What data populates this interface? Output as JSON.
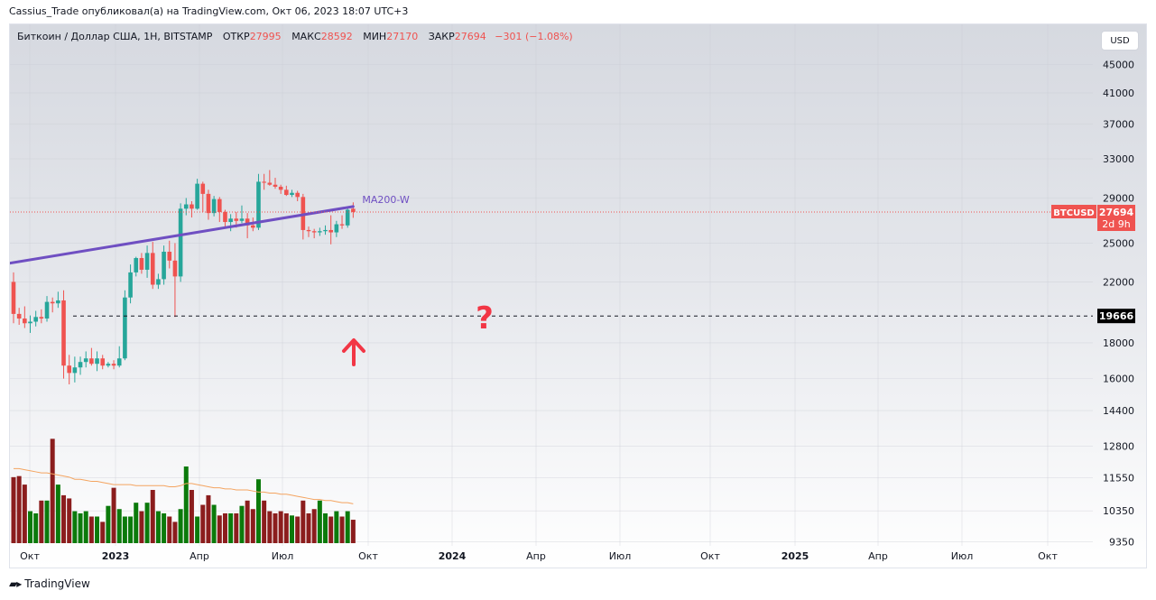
{
  "attribution": "Cassius_Trade опубликовал(а) на TradingView.com, Окт 06, 2023 18:07 UTC+3",
  "header": {
    "symbol": "Биткоин / Доллар США, 1Н, BITSTAMP",
    "open_label": "ОТКР",
    "open_value": "27995",
    "high_label": "МАКС",
    "high_value": "28592",
    "low_label": "МИН",
    "low_value": "27170",
    "close_label": "ЗАКР",
    "close_value": "27694",
    "change": "−301 (−1.08%)"
  },
  "currency_button": "USD",
  "footer": {
    "brand": "TradingView",
    "logo_icon": "tradingview-logo-icon"
  },
  "colors": {
    "up": "#26a69a",
    "down": "#ef5350",
    "vol_up": "#0b7a0b",
    "vol_down": "#8b1d1d",
    "ma200": "#6f4fc2",
    "vol_ma": "#f4a460",
    "annotation": "#f23645"
  },
  "chart_data": {
    "type": "candlestick",
    "interval": "1W",
    "y_axis_ticks": [
      "45000",
      "41000",
      "37000",
      "33000",
      "29000",
      "25000",
      "22000",
      "18000",
      "16000",
      "14400",
      "12800",
      "11550",
      "10350",
      "9350"
    ],
    "x_axis_labels": [
      {
        "label": "Окт",
        "bold": false
      },
      {
        "label": "2023",
        "bold": true
      },
      {
        "label": "Апр",
        "bold": false
      },
      {
        "label": "Июл",
        "bold": false
      },
      {
        "label": "Окт",
        "bold": false
      },
      {
        "label": "2024",
        "bold": true
      },
      {
        "label": "Апр",
        "bold": false
      },
      {
        "label": "Июл",
        "bold": false
      },
      {
        "label": "Окт",
        "bold": false
      },
      {
        "label": "2025",
        "bold": true
      },
      {
        "label": "Апр",
        "bold": false
      },
      {
        "label": "Июл",
        "bold": false
      },
      {
        "label": "Окт",
        "bold": false
      }
    ],
    "candles": [
      [
        22000,
        22700,
        19200,
        19800
      ],
      [
        19800,
        20200,
        19100,
        19500
      ],
      [
        19500,
        20300,
        18900,
        19200
      ],
      [
        19200,
        19700,
        18600,
        19300
      ],
      [
        19300,
        20000,
        19000,
        19600
      ],
      [
        19600,
        20100,
        19200,
        19500
      ],
      [
        19500,
        21000,
        19300,
        20600
      ],
      [
        20600,
        20900,
        19900,
        20500
      ],
      [
        20500,
        21300,
        20200,
        20700
      ],
      [
        20700,
        21400,
        16000,
        16700
      ],
      [
        16700,
        17300,
        15700,
        16300
      ],
      [
        16300,
        17200,
        15800,
        16600
      ],
      [
        16600,
        17200,
        16200,
        16900
      ],
      [
        16900,
        17500,
        16600,
        17100
      ],
      [
        17100,
        17700,
        16700,
        16800
      ],
      [
        16800,
        17500,
        16400,
        17100
      ],
      [
        17100,
        17300,
        16500,
        16700
      ],
      [
        16700,
        16900,
        16600,
        16800
      ],
      [
        16800,
        17000,
        16500,
        16700
      ],
      [
        16700,
        17800,
        16600,
        17100
      ],
      [
        17100,
        21400,
        17000,
        20900
      ],
      [
        20900,
        23300,
        20500,
        22700
      ],
      [
        22700,
        23900,
        22400,
        23800
      ],
      [
        23800,
        24200,
        22600,
        22900
      ],
      [
        22900,
        24800,
        22300,
        24200
      ],
      [
        24200,
        25100,
        21500,
        21800
      ],
      [
        21800,
        22600,
        21500,
        22200
      ],
      [
        22200,
        24800,
        21800,
        24300
      ],
      [
        24300,
        25200,
        23000,
        23600
      ],
      [
        23600,
        25000,
        19600,
        22400
      ],
      [
        22400,
        28500,
        22000,
        28000
      ],
      [
        28000,
        29000,
        27400,
        28400
      ],
      [
        28400,
        28700,
        27200,
        28000
      ],
      [
        28000,
        30900,
        27900,
        30400
      ],
      [
        30400,
        30600,
        27700,
        29400
      ],
      [
        29400,
        29800,
        27000,
        27600
      ],
      [
        27600,
        29200,
        27300,
        28900
      ],
      [
        28900,
        29100,
        26800,
        27700
      ],
      [
        27700,
        27900,
        26400,
        26800
      ],
      [
        26800,
        27500,
        26000,
        27100
      ],
      [
        27100,
        27700,
        26300,
        26900
      ],
      [
        26900,
        28300,
        26700,
        27100
      ],
      [
        27100,
        27600,
        25400,
        26500
      ],
      [
        26500,
        27200,
        26000,
        26300
      ],
      [
        26300,
        31400,
        26100,
        30600
      ],
      [
        30600,
        31400,
        29800,
        30500
      ],
      [
        30500,
        31800,
        30200,
        30300
      ],
      [
        30300,
        31000,
        29900,
        30100
      ],
      [
        30100,
        30300,
        29400,
        29800
      ],
      [
        29800,
        30200,
        29200,
        29300
      ],
      [
        29300,
        29800,
        29100,
        29500
      ],
      [
        29500,
        29700,
        28700,
        29100
      ],
      [
        29100,
        29400,
        25300,
        26100
      ],
      [
        26100,
        26400,
        25500,
        26000
      ],
      [
        26000,
        26200,
        25400,
        25900
      ],
      [
        25900,
        26300,
        25600,
        26000
      ],
      [
        26000,
        26500,
        25700,
        26100
      ],
      [
        26100,
        27400,
        24900,
        25900
      ],
      [
        25900,
        26900,
        25500,
        26600
      ],
      [
        26600,
        27400,
        26200,
        26500
      ],
      [
        26500,
        28100,
        26300,
        27900
      ],
      [
        27995,
        28592,
        27170,
        27694
      ]
    ],
    "volume_levels": [
      62,
      63,
      55,
      30,
      28,
      40,
      40,
      98,
      55,
      45,
      42,
      30,
      28,
      30,
      25,
      25,
      20,
      35,
      52,
      32,
      25,
      25,
      38,
      30,
      38,
      50,
      30,
      28,
      25,
      20,
      32,
      72,
      50,
      25,
      36,
      45,
      36,
      26,
      28,
      28,
      28,
      35,
      40,
      32,
      60,
      40,
      30,
      28,
      30,
      28,
      26,
      25,
      40,
      28,
      32,
      40,
      28,
      25,
      30,
      25,
      30,
      22
    ],
    "volume_ma": [
      70,
      70,
      69,
      68,
      67,
      66,
      66,
      65,
      64,
      63,
      62,
      60,
      60,
      59,
      58,
      58,
      57,
      56,
      55,
      55,
      55,
      55,
      54,
      54,
      54,
      54,
      54,
      54,
      53,
      53,
      54,
      56,
      56,
      55,
      54,
      53,
      52,
      52,
      51,
      51,
      50,
      50,
      50,
      49,
      48,
      48,
      47,
      47,
      46,
      46,
      45,
      44,
      43,
      42,
      41,
      41,
      40,
      40,
      39,
      38,
      38,
      37
    ],
    "ma200_label": "MA200-W",
    "ma200_points": [
      [
        0,
        23400
      ],
      [
        61,
        28200
      ]
    ],
    "price_line": {
      "label": "BTCUSD",
      "value": "27694",
      "countdown": "2d 9h"
    },
    "level_line": {
      "value": "19666"
    },
    "annotations": [
      "question-mark",
      "up-arrow"
    ]
  }
}
